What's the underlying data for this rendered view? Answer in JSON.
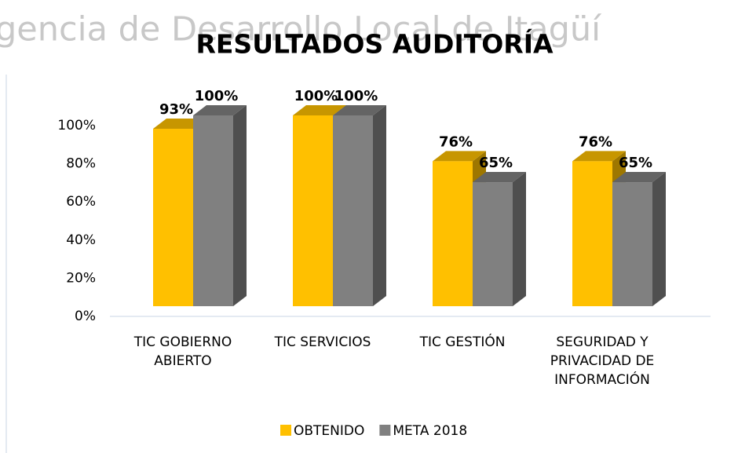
{
  "watermark": "gencia de Desarrollo Local de Itagüí",
  "chart_data": {
    "type": "bar3d",
    "title": "RESULTADOS AUDITORÍA",
    "categories": [
      "TIC GOBIERNO ABIERTO",
      "TIC SERVICIOS",
      "TIC GESTIÓN",
      "SEGURIDAD Y PRIVACIDAD DE INFORMACIÓN"
    ],
    "series": [
      {
        "name": "OBTENIDO",
        "color": "#FFC000",
        "values": [
          93,
          100,
          76,
          76
        ],
        "value_labels": [
          "93%",
          "100%",
          "76%",
          "76%"
        ]
      },
      {
        "name": "META 2018",
        "color": "#808080",
        "values": [
          100,
          100,
          65,
          65
        ],
        "value_labels": [
          "100%",
          "100%",
          "65%",
          "65%"
        ]
      }
    ],
    "ylim": [
      0,
      100
    ],
    "yticks": [
      {
        "value": 0,
        "label": "0%"
      },
      {
        "value": 20,
        "label": "20%"
      },
      {
        "value": 40,
        "label": "40%"
      },
      {
        "value": 60,
        "label": "60%"
      },
      {
        "value": 80,
        "label": "80%"
      },
      {
        "value": 100,
        "label": "100%"
      }
    ],
    "legend": "bottom"
  }
}
